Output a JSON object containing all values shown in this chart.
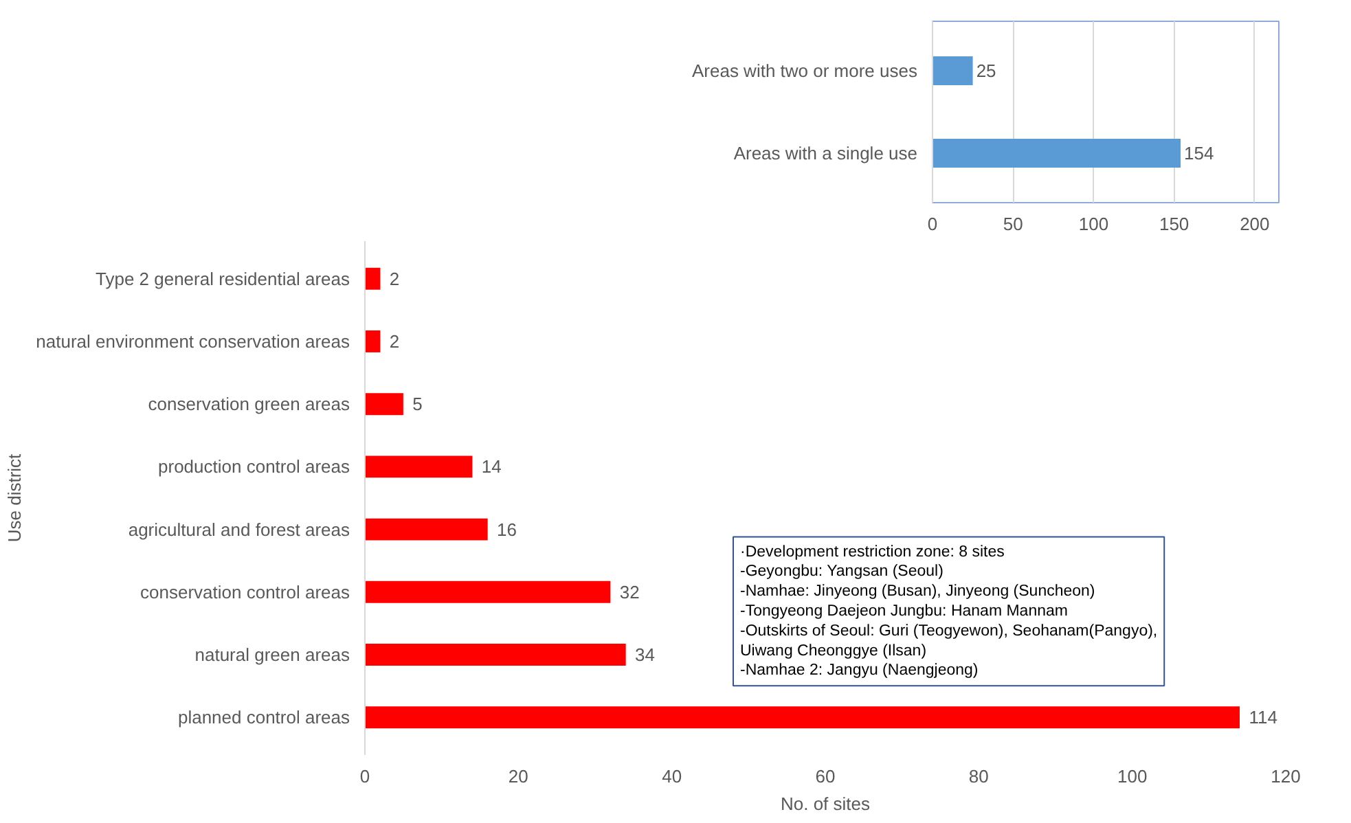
{
  "chart_data": [
    {
      "type": "bar",
      "orientation": "horizontal",
      "categories": [
        "Type 2 general residential areas",
        "natural environment conservation areas",
        "conservation green areas",
        "production control areas",
        "agricultural and forest areas",
        "conservation control areas",
        "natural green areas",
        "planned control areas"
      ],
      "values": [
        2,
        2,
        5,
        14,
        16,
        32,
        34,
        114
      ],
      "color": "#ff0000",
      "xlim": [
        0,
        120
      ],
      "xticks": [
        0,
        20,
        40,
        60,
        80,
        100,
        120
      ],
      "xlabel": "No. of sites",
      "ylabel": "Use district",
      "data_labels": true,
      "grid": false,
      "annotations": [
        "·Development restriction zone: 8 sites\n-Geyongbu: Yangsan (Seoul)\n-Namhae: Jinyeong (Busan), Jinyeong (Suncheon)\n-Tongyeong Daejeon Jungbu: Hanam Mannam\n-Outskirts of Seoul: Guri (Teogyewon), Seohanam(Pangyo),\n      Uiwang Cheonggye (Ilsan)\n-Namhae 2: Jangyu (Naengjeong)"
      ]
    },
    {
      "type": "bar",
      "orientation": "horizontal",
      "categories": [
        "Areas with two or more uses",
        "Areas with a single use"
      ],
      "values": [
        25,
        154
      ],
      "color": "#5b9bd5",
      "xlim": [
        0,
        215
      ],
      "xticks": [
        0,
        50,
        100,
        150,
        200
      ],
      "data_labels": true,
      "grid": "x"
    }
  ]
}
